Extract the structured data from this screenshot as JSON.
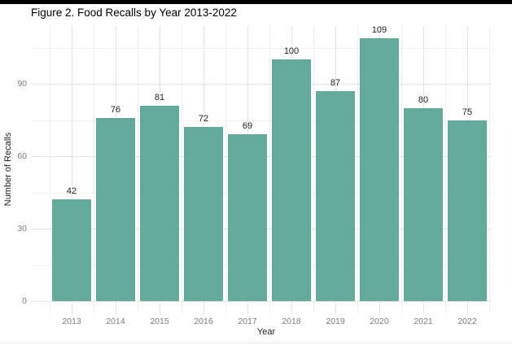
{
  "chart_data": {
    "type": "bar",
    "title": "Figure 2. Food Recalls by Year 2013-2022",
    "xlabel": "Year",
    "ylabel": "Number of Recalls",
    "categories": [
      "2013",
      "2014",
      "2015",
      "2016",
      "2017",
      "2018",
      "2019",
      "2020",
      "2021",
      "2022"
    ],
    "values": [
      42,
      76,
      81,
      72,
      69,
      100,
      87,
      109,
      80,
      75
    ],
    "value_labels": [
      "42",
      "76",
      "81",
      "72",
      "69",
      "100",
      "87",
      "109",
      "80",
      "75"
    ],
    "yticks": [
      0,
      30,
      60,
      90
    ],
    "ytick_labels": [
      "0",
      "30",
      "60",
      "90"
    ],
    "yticks_minor": [
      15,
      45,
      75,
      105
    ],
    "ylim": [
      0,
      114.5
    ],
    "grid": "on",
    "legend": "none"
  },
  "colors": {
    "background": "#ffffff",
    "bar_fill": "#61aa9c",
    "grid_major": "#e3e3e3",
    "grid_minor": "#f0f0f0",
    "tick_text": "#7d7d7d",
    "label_text": "#1f1f1f",
    "title_text": "#000000",
    "top_border": "#000000",
    "bottom_rule": "#e6e6e6"
  }
}
